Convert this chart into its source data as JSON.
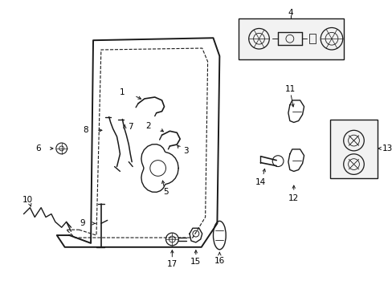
{
  "bg_color": "#ffffff",
  "line_color": "#1a1a1a",
  "fig_width": 4.89,
  "fig_height": 3.6,
  "dpi": 100,
  "gray_fill": "#e8e8e8",
  "light_gray": "#f2f2f2"
}
